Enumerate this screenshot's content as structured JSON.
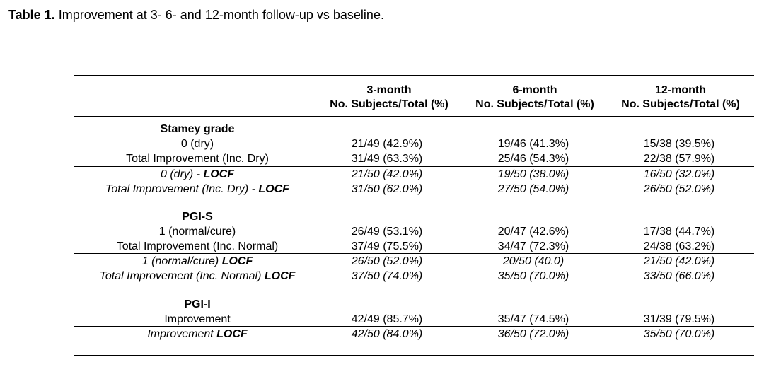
{
  "caption": {
    "label": "Table 1.",
    "text": "Improvement at 3-  6- and 12-month follow-up vs baseline."
  },
  "columns": [
    {
      "period": "3-month",
      "sub": "No. Subjects/Total (%)"
    },
    {
      "period": "6-month",
      "sub": "No. Subjects/Total (%)"
    },
    {
      "period": "12-month",
      "sub": "No. Subjects/Total (%)"
    }
  ],
  "sections": [
    {
      "title": "Stamey grade",
      "rows": [
        {
          "label": "0 (dry)",
          "values": [
            "21/49 (42.9%)",
            "19/46 (41.3%)",
            "15/38 (39.5%)"
          ]
        },
        {
          "label": "Total Improvement (Inc. Dry)",
          "values": [
            "31/49 (63.3%)",
            "25/46 (54.3%)",
            "22/38 (57.9%)"
          ]
        },
        {
          "label": "0 (dry) - ",
          "locf": "LOCF",
          "values": [
            "21/50 (42.0%)",
            "19/50 (38.0%)",
            "16/50 (32.0%)"
          ]
        },
        {
          "label": "Total Improvement (Inc. Dry) - ",
          "locf": "LOCF",
          "values": [
            "31/50 (62.0%)",
            "27/50 (54.0%)",
            "26/50 (52.0%)"
          ]
        }
      ]
    },
    {
      "title": "PGI-S",
      "rows": [
        {
          "label": "1 (normal/cure)",
          "values": [
            "26/49 (53.1%)",
            "20/47 (42.6%)",
            "17/38 (44.7%)"
          ]
        },
        {
          "label": "Total Improvement (Inc. Normal)",
          "values": [
            "37/49 (75.5%)",
            "34/47 (72.3%)",
            "24/38 (63.2%)"
          ]
        },
        {
          "label": "1 (normal/cure) ",
          "locf": "LOCF",
          "values": [
            "26/50 (52.0%)",
            "20/50 (40.0)",
            "21/50 (42.0%)"
          ]
        },
        {
          "label": "Total Improvement (Inc. Normal) ",
          "locf": "LOCF",
          "values": [
            "37/50 (74.0%)",
            "35/50 (70.0%)",
            "33/50 (66.0%)"
          ]
        }
      ]
    },
    {
      "title": "PGI-I",
      "rows": [
        {
          "label": "Improvement",
          "values": [
            "42/49 (85.7%)",
            "35/47 (74.5%)",
            "31/39 (79.5%)"
          ]
        },
        {
          "label": "Improvement ",
          "locf": "LOCF",
          "values": [
            "42/50 (84.0%)",
            "36/50 (72.0%)",
            "35/50 (70.0%)"
          ]
        }
      ]
    }
  ]
}
